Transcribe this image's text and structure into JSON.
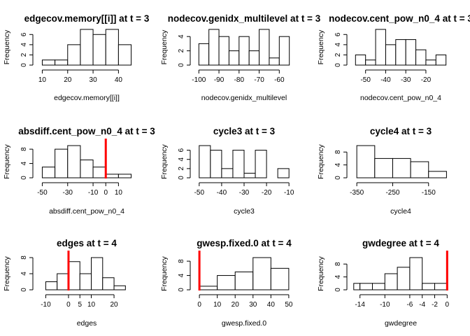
{
  "chart_data": [
    {
      "type": "histogram",
      "title": "edgecov.memory[[i]] at t = 3",
      "xlabel": "edgecov.memory[[i]]",
      "ylabel": "Frequency",
      "bins": [
        [
          10,
          15
        ],
        [
          15,
          20
        ],
        [
          20,
          25
        ],
        [
          25,
          30
        ],
        [
          30,
          35
        ],
        [
          35,
          40
        ],
        [
          40,
          45
        ]
      ],
      "values": [
        1,
        1,
        4,
        7,
        6,
        7,
        4
      ],
      "xlim": [
        8.5,
        46.5
      ],
      "ylim": [
        0,
        7
      ],
      "xticks": [
        10,
        20,
        30,
        40
      ],
      "yticks": [
        0,
        2,
        4,
        6
      ],
      "observed": null
    },
    {
      "type": "histogram",
      "title": "nodecov.genidx_multilevel at t = 3",
      "xlabel": "nodecov.genidx_multilevel",
      "ylabel": "Frequency",
      "bins": [
        [
          -100,
          -95
        ],
        [
          -95,
          -90
        ],
        [
          -90,
          -85
        ],
        [
          -85,
          -80
        ],
        [
          -80,
          -75
        ],
        [
          -75,
          -70
        ],
        [
          -70,
          -65
        ],
        [
          -65,
          -60
        ],
        [
          -60,
          -55
        ]
      ],
      "values": [
        3,
        5,
        4,
        2,
        4,
        2,
        5,
        1,
        4
      ],
      "xlim": [
        -101.5,
        -53.5
      ],
      "ylim": [
        0,
        5
      ],
      "xticks": [
        -100,
        -90,
        -80,
        -70,
        -60
      ],
      "yticks": [
        0,
        2,
        4
      ],
      "observed": null
    },
    {
      "type": "histogram",
      "title": "nodecov.cent_pow_n0_4 at t = 3",
      "xlabel": "nodecov.cent_pow_n0_4",
      "ylabel": "Frequency",
      "bins": [
        [
          -55,
          -50
        ],
        [
          -50,
          -45
        ],
        [
          -45,
          -40
        ],
        [
          -40,
          -35
        ],
        [
          -35,
          -30
        ],
        [
          -30,
          -25
        ],
        [
          -25,
          -20
        ],
        [
          -20,
          -15
        ],
        [
          -15,
          -10
        ]
      ],
      "values": [
        2,
        1,
        7,
        4,
        5,
        5,
        3,
        1,
        2
      ],
      "xlim": [
        -56.5,
        -8.5
      ],
      "ylim": [
        0,
        7
      ],
      "xticks": [
        -50,
        -40,
        -30,
        -20
      ],
      "yticks": [
        0,
        2,
        4,
        6
      ],
      "observed": null
    },
    {
      "type": "histogram",
      "title": "absdiff.cent_pow_n0_4 at t = 3",
      "xlabel": "absdiff.cent_pow_n0_4",
      "ylabel": "Frequency",
      "bins": [
        [
          -50,
          -40
        ],
        [
          -40,
          -30
        ],
        [
          -30,
          -20
        ],
        [
          -20,
          -10
        ],
        [
          -10,
          0
        ],
        [
          0,
          10
        ],
        [
          10,
          20
        ]
      ],
      "values": [
        3,
        8,
        9,
        5,
        3,
        1,
        1
      ],
      "xlim": [
        -53,
        23
      ],
      "ylim": [
        0,
        9
      ],
      "xticks": [
        -50,
        -30,
        -10,
        0,
        10
      ],
      "yticks": [
        0,
        4,
        8
      ],
      "observed": 0
    },
    {
      "type": "histogram",
      "title": "cycle3 at t = 3",
      "xlabel": "cycle3",
      "ylabel": "Frequency",
      "bins": [
        [
          -50,
          -45
        ],
        [
          -45,
          -40
        ],
        [
          -40,
          -35
        ],
        [
          -35,
          -30
        ],
        [
          -30,
          -25
        ],
        [
          -25,
          -20
        ],
        [
          -20,
          -15
        ],
        [
          -15,
          -10
        ]
      ],
      "values": [
        7,
        6,
        2,
        6,
        1,
        6,
        0,
        2
      ],
      "xlim": [
        -51.5,
        -8.5
      ],
      "ylim": [
        0,
        7
      ],
      "xticks": [
        -50,
        -40,
        -30,
        -20,
        -10
      ],
      "yticks": [
        0,
        2,
        4,
        6
      ],
      "observed": null
    },
    {
      "type": "histogram",
      "title": "cycle4 at t = 3",
      "xlabel": "cycle4",
      "ylabel": "Frequency",
      "bins": [
        [
          -350,
          -300
        ],
        [
          -300,
          -250
        ],
        [
          -250,
          -200
        ],
        [
          -200,
          -150
        ],
        [
          -150,
          -100
        ]
      ],
      "values": [
        10,
        6,
        6,
        5,
        2
      ],
      "xlim": [
        -362,
        -93
      ],
      "ylim": [
        0,
        10
      ],
      "xticks": [
        -350,
        -250,
        -150
      ],
      "yticks": [
        0,
        4,
        8
      ],
      "observed": null
    },
    {
      "type": "histogram",
      "title": "edges at t = 4",
      "xlabel": "edges",
      "ylabel": "Frequency",
      "bins": [
        [
          -10,
          -5
        ],
        [
          -5,
          0
        ],
        [
          0,
          5
        ],
        [
          5,
          10
        ],
        [
          10,
          15
        ],
        [
          15,
          20
        ],
        [
          20,
          25
        ],
        [
          25,
          30
        ]
      ],
      "values": [
        2,
        4,
        7,
        4,
        8,
        3,
        1,
        0
      ],
      "xlim": [
        -13.2,
        29.2
      ],
      "ylim": [
        0,
        8
      ],
      "xticks": [
        -10,
        0,
        5,
        10,
        20
      ],
      "yticks": [
        0,
        4,
        8
      ],
      "observed": 0
    },
    {
      "type": "histogram",
      "title": "gwesp.fixed.0 at t = 4",
      "xlabel": "gwesp.fixed.0",
      "ylabel": "Frequency",
      "bins": [
        [
          0,
          10
        ],
        [
          10,
          20
        ],
        [
          20,
          30
        ],
        [
          30,
          40
        ],
        [
          40,
          50
        ]
      ],
      "values": [
        1,
        4,
        5,
        9,
        6
      ],
      "xlim": [
        -2,
        52
      ],
      "ylim": [
        0,
        9
      ],
      "xticks": [
        0,
        10,
        20,
        30,
        40,
        50
      ],
      "yticks": [
        0,
        4,
        8
      ],
      "observed": 0
    },
    {
      "type": "histogram",
      "title": "gwdegree at t = 4",
      "xlabel": "gwdegree",
      "ylabel": "Frequency",
      "bins": [
        [
          -15,
          -14
        ],
        [
          -14,
          -12
        ],
        [
          -12,
          -10
        ],
        [
          -10,
          -8
        ],
        [
          -8,
          -6
        ],
        [
          -6,
          -4
        ],
        [
          -4,
          -2
        ],
        [
          -2,
          0
        ]
      ],
      "values": [
        2,
        2,
        2,
        5,
        7,
        10,
        2,
        2
      ],
      "xlim": [
        -15.2,
        0.3
      ],
      "ylim": [
        0,
        10
      ],
      "xticks": [
        -14,
        -10,
        -6,
        -4,
        -2,
        0
      ],
      "yticks": [
        0,
        4,
        8
      ],
      "observed": 0
    }
  ],
  "colors": {
    "bar_fill": "#ffffff",
    "bar_stroke": "#000000",
    "observed_line": "#ff0000"
  }
}
